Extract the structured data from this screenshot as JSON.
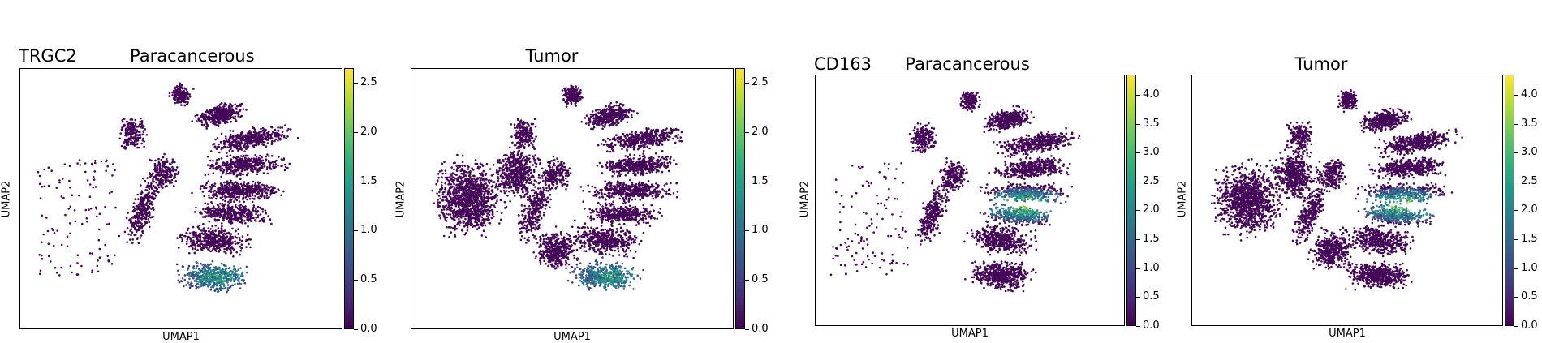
{
  "figure": {
    "panels": [
      {
        "id": "trgc2-paracancerous",
        "gene_label": "TRGC2",
        "title": "Paracancerous",
        "xlabel": "UMAP1",
        "ylabel": "UMAP2",
        "colorbar_ticks": [
          "0.0",
          "0.5",
          "1.0",
          "1.5",
          "2.0",
          "2.5"
        ],
        "colorbar_max": 2.65
      },
      {
        "id": "trgc2-tumor",
        "gene_label": "",
        "title": "Tumor",
        "xlabel": "UMAP1",
        "ylabel": "UMAP2",
        "colorbar_ticks": [
          "0.0",
          "0.5",
          "1.0",
          "1.5",
          "2.0",
          "2.5"
        ],
        "colorbar_max": 2.65
      },
      {
        "id": "cd163-paracancerous",
        "gene_label": "CD163",
        "title": "Paracancerous",
        "xlabel": "UMAP1",
        "ylabel": "UMAP2",
        "colorbar_ticks": [
          "0.0",
          "0.5",
          "1.0",
          "1.5",
          "2.0",
          "2.5",
          "3.0",
          "3.5",
          "4.0"
        ],
        "colorbar_max": 4.35
      },
      {
        "id": "cd163-tumor",
        "gene_label": "",
        "title": "Tumor",
        "xlabel": "UMAP1",
        "ylabel": "UMAP2",
        "colorbar_ticks": [
          "0.0",
          "0.5",
          "1.0",
          "1.5",
          "2.0",
          "2.5",
          "3.0",
          "3.5",
          "4.0"
        ],
        "colorbar_max": 4.35
      }
    ]
  },
  "chart_data": [
    {
      "type": "scatter",
      "title": "Paracancerous",
      "xlabel": "UMAP1",
      "ylabel": "UMAP2",
      "colorbar_range": [
        0,
        2.65
      ],
      "colormap": "viridis",
      "high_expression_region": "lower-right lobe",
      "grid": false
    },
    {
      "type": "scatter",
      "title": "Tumor",
      "xlabel": "UMAP1",
      "ylabel": "UMAP2",
      "colorbar_range": [
        0,
        2.65
      ],
      "colormap": "viridis",
      "high_expression_region": "lower-right lobe",
      "grid": false
    },
    {
      "type": "scatter",
      "title": "Paracancerous",
      "xlabel": "UMAP1",
      "ylabel": "UMAP2",
      "colorbar_range": [
        0,
        4.35
      ],
      "colormap": "viridis",
      "high_expression_region": "center-right lobe",
      "grid": false
    },
    {
      "type": "scatter",
      "title": "Tumor",
      "xlabel": "UMAP1",
      "ylabel": "UMAP2",
      "colorbar_range": [
        0,
        4.35
      ],
      "colormap": "viridis",
      "high_expression_region": "center-right lobe",
      "grid": false
    }
  ],
  "colors": {
    "low": "#440154",
    "mid": "#21918c",
    "high": "#fde725"
  }
}
